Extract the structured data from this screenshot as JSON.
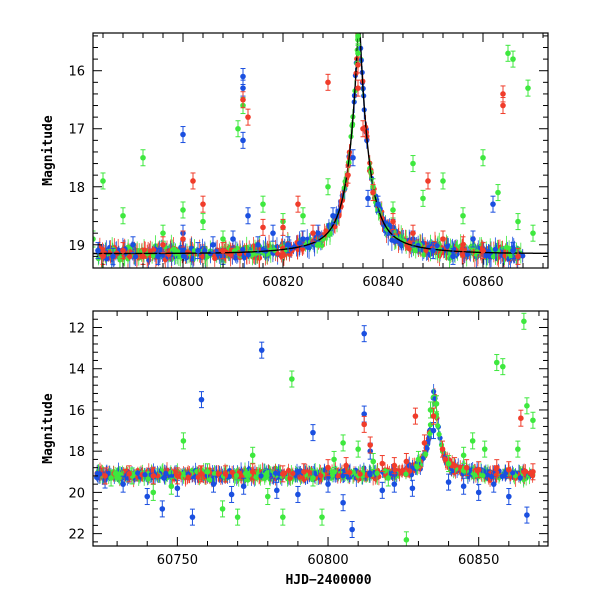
{
  "chart_data": [
    {
      "type": "scatter",
      "panel": "top",
      "title": "",
      "xlabel": "",
      "ylabel": "Magnitude",
      "xlim": [
        60782,
        60873
      ],
      "ylim": [
        19.4,
        15.35
      ],
      "y_inverted": true,
      "x_ticks": [
        60800,
        60820,
        60840,
        60860
      ],
      "y_ticks": [
        16,
        17,
        18,
        19
      ],
      "series": [
        {
          "color": "#1a4fe0",
          "points": [
            [
              60783,
              19.1
            ],
            [
              60786,
              19.2
            ],
            [
              60790,
              19.0
            ],
            [
              60795,
              19.2
            ],
            [
              60800,
              18.8
            ],
            [
              60800,
              17.1
            ],
            [
              60803,
              19.1
            ],
            [
              60806,
              19.0
            ],
            [
              60808,
              19.2
            ],
            [
              60810,
              18.9
            ],
            [
              60812,
              16.1
            ],
            [
              60812,
              16.3
            ],
            [
              60812,
              17.2
            ],
            [
              60813,
              18.5
            ],
            [
              60815,
              19.0
            ],
            [
              60818,
              18.8
            ],
            [
              60821,
              19.0
            ],
            [
              60824,
              18.9
            ],
            [
              60827,
              18.8
            ],
            [
              60830,
              18.5
            ],
            [
              60834,
              17.5
            ],
            [
              60837,
              18.2
            ],
            [
              60839,
              18.3
            ],
            [
              60842,
              18.7
            ],
            [
              60846,
              18.9
            ],
            [
              60850,
              19.1
            ],
            [
              60854,
              19.2
            ],
            [
              60858,
              18.9
            ],
            [
              60862,
              18.3
            ],
            [
              60866,
              19.1
            ]
          ]
        },
        {
          "color": "#3ee83e",
          "points": [
            [
              60782,
              18.9
            ],
            [
              60784,
              17.9
            ],
            [
              60788,
              18.5
            ],
            [
              60792,
              17.5
            ],
            [
              60796,
              18.8
            ],
            [
              60800,
              18.4
            ],
            [
              60804,
              18.6
            ],
            [
              60808,
              18.9
            ],
            [
              60811,
              17.0
            ],
            [
              60812,
              16.6
            ],
            [
              60816,
              18.3
            ],
            [
              60820,
              18.6
            ],
            [
              60824,
              18.5
            ],
            [
              60829,
              18.0
            ],
            [
              60835,
              15.7
            ],
            [
              60835,
              15.4
            ],
            [
              60838,
              18.0
            ],
            [
              60842,
              18.4
            ],
            [
              60846,
              17.6
            ],
            [
              60848,
              18.2
            ],
            [
              60852,
              17.9
            ],
            [
              60856,
              18.5
            ],
            [
              60860,
              17.5
            ],
            [
              60863,
              18.1
            ],
            [
              60865,
              15.7
            ],
            [
              60866,
              15.8
            ],
            [
              60867,
              18.6
            ],
            [
              60869,
              16.3
            ],
            [
              60870,
              18.8
            ]
          ]
        },
        {
          "color": "#f03c2a",
          "points": [
            [
              60784,
              19.2
            ],
            [
              60788,
              19.1
            ],
            [
              60792,
              19.2
            ],
            [
              60796,
              19.0
            ],
            [
              60800,
              18.9
            ],
            [
              60802,
              17.9
            ],
            [
              60804,
              18.3
            ],
            [
              60808,
              19.1
            ],
            [
              60812,
              16.5
            ],
            [
              60813,
              16.8
            ],
            [
              60816,
              18.7
            ],
            [
              60820,
              18.7
            ],
            [
              60823,
              18.3
            ],
            [
              60826,
              18.8
            ],
            [
              60829,
              16.2
            ],
            [
              60833,
              17.8
            ],
            [
              60835,
              15.9
            ],
            [
              60835,
              16.3
            ],
            [
              60836,
              17.0
            ],
            [
              60838,
              18.1
            ],
            [
              60842,
              18.6
            ],
            [
              60846,
              18.8
            ],
            [
              60849,
              17.9
            ],
            [
              60852,
              18.9
            ],
            [
              60856,
              19.0
            ],
            [
              60860,
              19.1
            ],
            [
              60864,
              16.4
            ],
            [
              60864,
              16.6
            ],
            [
              60867,
              19.2
            ]
          ]
        }
      ]
    },
    {
      "type": "scatter",
      "panel": "bottom",
      "title": "",
      "xlabel": "HJD−2400000",
      "ylabel": "Magnitude",
      "xlim": [
        60722,
        60873
      ],
      "ylim": [
        22.6,
        11.2
      ],
      "y_inverted": true,
      "x_ticks": [
        60750,
        60800,
        60850
      ],
      "y_ticks": [
        12,
        14,
        16,
        18,
        20,
        22
      ],
      "series": [
        {
          "color": "#1a4fe0",
          "points": [
            [
              60726,
              19.4
            ],
            [
              60732,
              19.6
            ],
            [
              60740,
              20.2
            ],
            [
              60745,
              20.8
            ],
            [
              60750,
              19.8
            ],
            [
              60755,
              21.2
            ],
            [
              60758,
              15.5
            ],
            [
              60762,
              19.6
            ],
            [
              60768,
              20.1
            ],
            [
              60772,
              19.7
            ],
            [
              60778,
              13.1
            ],
            [
              60783,
              19.9
            ],
            [
              60790,
              20.1
            ],
            [
              60795,
              17.1
            ],
            [
              60800,
              19.6
            ],
            [
              60805,
              20.5
            ],
            [
              60808,
              21.8
            ],
            [
              60812,
              12.3
            ],
            [
              60812,
              16.2
            ],
            [
              60814,
              18.0
            ],
            [
              60818,
              19.9
            ],
            [
              60822,
              19.6
            ],
            [
              60828,
              19.8
            ],
            [
              60835,
              17.0
            ],
            [
              60840,
              19.5
            ],
            [
              60845,
              19.7
            ],
            [
              60850,
              20.0
            ],
            [
              60855,
              19.6
            ],
            [
              60860,
              20.2
            ],
            [
              60866,
              21.1
            ]
          ]
        },
        {
          "color": "#3ee83e",
          "points": [
            [
              60728,
              19.3
            ],
            [
              60735,
              19.2
            ],
            [
              60742,
              20.0
            ],
            [
              60748,
              19.7
            ],
            [
              60752,
              17.5
            ],
            [
              60760,
              19.0
            ],
            [
              60765,
              20.8
            ],
            [
              60770,
              21.2
            ],
            [
              60775,
              18.2
            ],
            [
              60780,
              20.2
            ],
            [
              60785,
              21.2
            ],
            [
              60788,
              14.5
            ],
            [
              60795,
              19.3
            ],
            [
              60798,
              21.2
            ],
            [
              60802,
              18.4
            ],
            [
              60805,
              17.6
            ],
            [
              60810,
              17.9
            ],
            [
              60815,
              18.5
            ],
            [
              60820,
              19.3
            ],
            [
              60826,
              22.3
            ],
            [
              60830,
              18.4
            ],
            [
              60834,
              16.0
            ],
            [
              60836,
              15.7
            ],
            [
              60840,
              18.6
            ],
            [
              60845,
              18.2
            ],
            [
              60848,
              17.5
            ],
            [
              60852,
              17.9
            ],
            [
              60856,
              13.7
            ],
            [
              60858,
              13.9
            ],
            [
              60863,
              17.9
            ],
            [
              60865,
              11.7
            ],
            [
              60866,
              15.8
            ],
            [
              60868,
              16.5
            ]
          ]
        },
        {
          "color": "#f03c2a",
          "points": [
            [
              60726,
              19.2
            ],
            [
              60734,
              19.1
            ],
            [
              60742,
              19.2
            ],
            [
              60750,
              19.2
            ],
            [
              60758,
              19.1
            ],
            [
              60766,
              19.1
            ],
            [
              60775,
              19.0
            ],
            [
              60785,
              19.1
            ],
            [
              60792,
              19.0
            ],
            [
              60800,
              18.8
            ],
            [
              60806,
              18.7
            ],
            [
              60812,
              16.7
            ],
            [
              60814,
              17.7
            ],
            [
              60818,
              18.6
            ],
            [
              60822,
              18.7
            ],
            [
              60826,
              18.5
            ],
            [
              60829,
              16.3
            ],
            [
              60832,
              17.6
            ],
            [
              60835,
              16.3
            ],
            [
              60838,
              17.9
            ],
            [
              60842,
              18.7
            ],
            [
              60846,
              18.8
            ],
            [
              60850,
              18.9
            ],
            [
              60856,
              18.8
            ],
            [
              60860,
              18.9
            ],
            [
              60864,
              16.4
            ],
            [
              60868,
              19.0
            ]
          ]
        }
      ]
    }
  ]
}
